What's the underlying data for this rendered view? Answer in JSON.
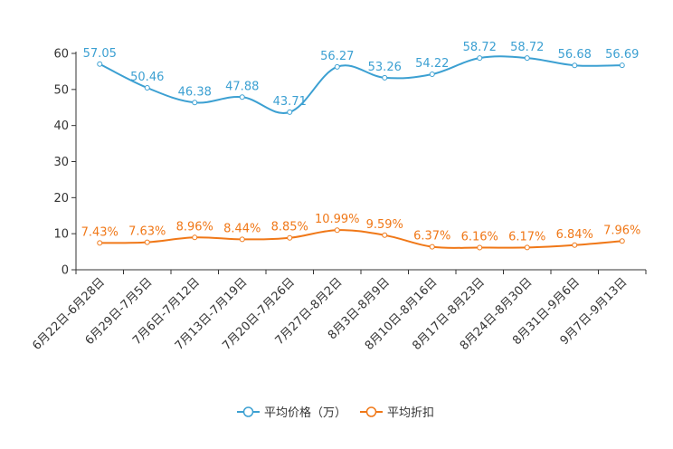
{
  "chart_data": {
    "type": "line",
    "title": "",
    "xlabel": "",
    "ylabel": "",
    "ylim": [
      0,
      60
    ],
    "yticks": [
      0,
      10,
      20,
      30,
      40,
      50,
      60
    ],
    "grid": false,
    "legend_position": "bottom-center",
    "categories": [
      "6月22日-6月28日",
      "6月29日-7月5日",
      "7月6日-7月12日",
      "7月13日-7月19日",
      "7月20日-7月26日",
      "7月27日-8月2日",
      "8月3日-8月9日",
      "8月10日-8月16日",
      "8月17日-8月23日",
      "8月24日-8月30日",
      "8月31日-9月6日",
      "9月7日-9月13日"
    ],
    "series": [
      {
        "name": "平均价格（万）",
        "color": "#3ca0d2",
        "values": [
          57.05,
          50.46,
          46.38,
          47.88,
          43.71,
          56.27,
          53.26,
          54.22,
          58.72,
          58.72,
          56.68,
          56.69
        ],
        "labels": [
          "57.05",
          "50.46",
          "46.38",
          "47.88",
          "43.71",
          "56.27",
          "53.26",
          "54.22",
          "58.72",
          "58.72",
          "56.68",
          "56.69"
        ]
      },
      {
        "name": "平均折扣",
        "color": "#f07818",
        "values": [
          7.43,
          7.63,
          8.96,
          8.44,
          8.85,
          10.99,
          9.59,
          6.37,
          6.16,
          6.17,
          6.84,
          7.96
        ],
        "labels": [
          "7.43%",
          "7.63%",
          "8.96%",
          "8.44%",
          "8.85%",
          "10.99%",
          "9.59%",
          "6.37%",
          "6.16%",
          "6.17%",
          "6.84%",
          "7.96%"
        ]
      }
    ]
  }
}
